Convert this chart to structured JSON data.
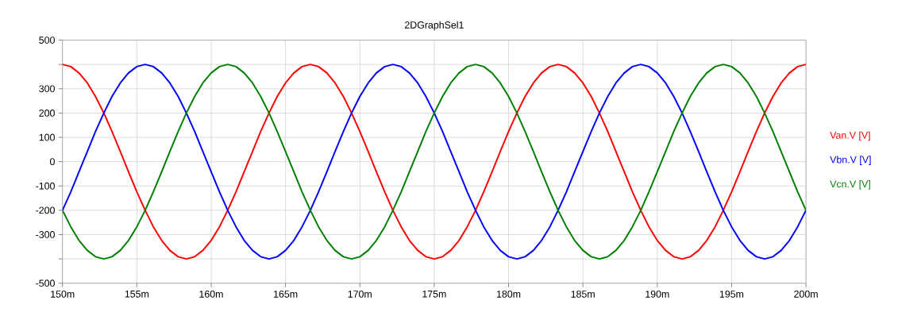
{
  "chart_data": {
    "type": "line",
    "title": "2DGraphSel1",
    "x": [
      150,
      150.56,
      151.11,
      151.67,
      152.22,
      152.78,
      153.33,
      153.89,
      154.44,
      155,
      155.56,
      156.11,
      156.67,
      157.22,
      157.78,
      158.33,
      158.89,
      159.44,
      160,
      160.56,
      161.11,
      161.67,
      162.22,
      162.78,
      163.33,
      163.89,
      164.44,
      165,
      165.56,
      166.11,
      166.67,
      167.22,
      167.78,
      168.33,
      168.89,
      169.44,
      170,
      170.56,
      171.11,
      171.67,
      172.22,
      172.78,
      173.33,
      173.89,
      174.44,
      175,
      175.56,
      176.11,
      176.67,
      177.22,
      177.78,
      178.33,
      178.89,
      179.44,
      180,
      180.56,
      181.11,
      181.67,
      182.22,
      182.78,
      183.33,
      183.89,
      184.44,
      185,
      185.56,
      186.11,
      186.67,
      187.22,
      187.78,
      188.33,
      188.89,
      189.44,
      190,
      190.56,
      191.11,
      191.67,
      192.22,
      192.78,
      193.33,
      193.89,
      194.44,
      195,
      195.56,
      196.11,
      196.67,
      197.22,
      197.78,
      198.33,
      198.89,
      199.44,
      200
    ],
    "series": [
      {
        "name": "Van.V [V]",
        "color": "#ff0000",
        "values": [
          400,
          391,
          365,
          324,
          268,
          200,
          124,
          42,
          -42,
          -124,
          -200,
          -268,
          -324,
          -365,
          -391,
          -400,
          -391,
          -365,
          -324,
          -268,
          -200,
          -124,
          -42,
          42,
          124,
          200,
          268,
          324,
          365,
          391,
          400,
          391,
          365,
          324,
          268,
          200,
          124,
          42,
          -42,
          -124,
          -200,
          -268,
          -324,
          -365,
          -391,
          -400,
          -391,
          -365,
          -324,
          -268,
          -200,
          -124,
          -42,
          42,
          124,
          200,
          268,
          324,
          365,
          391,
          400,
          391,
          365,
          324,
          268,
          200,
          124,
          42,
          -42,
          -124,
          -200,
          -268,
          -324,
          -365,
          -391,
          -400,
          -391,
          -365,
          -324,
          -268,
          -200,
          -124,
          -42,
          42,
          124,
          200,
          268,
          324,
          365,
          391,
          400
        ]
      },
      {
        "name": "Vbn.V [V]",
        "color": "#0000ff",
        "values": [
          -200,
          -124,
          -42,
          42,
          124,
          200,
          268,
          324,
          365,
          391,
          400,
          391,
          365,
          324,
          268,
          200,
          124,
          42,
          -42,
          -124,
          -200,
          -268,
          -324,
          -365,
          -391,
          -400,
          -391,
          -365,
          -324,
          -268,
          -200,
          -124,
          -42,
          42,
          124,
          200,
          268,
          324,
          365,
          391,
          400,
          391,
          365,
          324,
          268,
          200,
          124,
          42,
          -42,
          -124,
          -200,
          -268,
          -324,
          -365,
          -391,
          -400,
          -391,
          -365,
          -324,
          -268,
          -200,
          -124,
          -42,
          42,
          124,
          200,
          268,
          324,
          365,
          391,
          400,
          391,
          365,
          324,
          268,
          200,
          124,
          42,
          -42,
          -124,
          -200,
          -268,
          -324,
          -365,
          -391,
          -400,
          -391,
          -365,
          -324,
          -268,
          -200
        ]
      },
      {
        "name": "Vcn.V [V]",
        "color": "#008000",
        "values": [
          -200,
          -268,
          -324,
          -365,
          -391,
          -400,
          -391,
          -365,
          -324,
          -268,
          -200,
          -124,
          -42,
          42,
          124,
          200,
          268,
          324,
          365,
          391,
          400,
          391,
          365,
          324,
          268,
          200,
          124,
          42,
          -42,
          -124,
          -200,
          -268,
          -324,
          -365,
          -391,
          -400,
          -391,
          -365,
          -324,
          -268,
          -200,
          -124,
          -42,
          42,
          124,
          200,
          268,
          324,
          365,
          391,
          400,
          391,
          365,
          324,
          268,
          200,
          124,
          42,
          -42,
          -124,
          -200,
          -268,
          -324,
          -365,
          -391,
          -400,
          -391,
          -365,
          -324,
          -268,
          -200,
          -124,
          -42,
          42,
          124,
          200,
          268,
          324,
          365,
          391,
          400,
          391,
          365,
          324,
          268,
          200,
          124,
          42,
          -42,
          -124,
          -200
        ]
      }
    ],
    "xlim": [
      150,
      200
    ],
    "xticks": [
      {
        "value": 150,
        "label": "150m"
      },
      {
        "value": 155,
        "label": "155m"
      },
      {
        "value": 160,
        "label": "160m"
      },
      {
        "value": 165,
        "label": "165m"
      },
      {
        "value": 170,
        "label": "170m"
      },
      {
        "value": 175,
        "label": "175m"
      },
      {
        "value": 180,
        "label": "180m"
      },
      {
        "value": 185,
        "label": "185m"
      },
      {
        "value": 190,
        "label": "190m"
      },
      {
        "value": 195,
        "label": "195m"
      },
      {
        "value": 200,
        "label": "200m"
      }
    ],
    "ylim": [
      -500,
      500
    ],
    "yticks": [
      -500,
      {
        "value": -400,
        "label": null
      },
      -300,
      -200,
      -100,
      0,
      100,
      200,
      300,
      {
        "value": 400,
        "label": null
      },
      500
    ],
    "grid": true,
    "legend": "right",
    "marker": "none",
    "line_style": "solid"
  }
}
